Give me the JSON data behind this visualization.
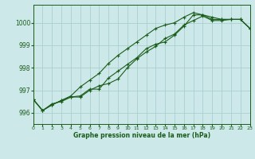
{
  "title": "Graphe pression niveau de la mer (hPa)",
  "bg_color": "#cce8e8",
  "grid_color": "#aad0d0",
  "line_color": "#1a5c1a",
  "xlim": [
    0,
    23
  ],
  "ylim": [
    995.5,
    1000.8
  ],
  "yticks": [
    996,
    997,
    998,
    999,
    1000
  ],
  "xticks": [
    0,
    1,
    2,
    3,
    4,
    5,
    6,
    7,
    8,
    9,
    10,
    11,
    12,
    13,
    14,
    15,
    16,
    17,
    18,
    19,
    20,
    21,
    22,
    23
  ],
  "series1": [
    996.6,
    996.1,
    996.4,
    996.5,
    996.7,
    996.7,
    997.0,
    997.2,
    997.3,
    997.5,
    998.0,
    998.4,
    998.7,
    998.95,
    999.3,
    999.5,
    999.9,
    1000.1,
    1000.3,
    1000.1,
    1000.1,
    1000.15,
    1000.15,
    999.75
  ],
  "series2": [
    996.6,
    996.1,
    996.35,
    996.55,
    996.75,
    997.15,
    997.45,
    997.75,
    998.2,
    998.55,
    998.85,
    999.15,
    999.45,
    999.75,
    999.9,
    1000.0,
    1000.25,
    1000.45,
    1000.35,
    1000.25,
    1000.15,
    1000.15,
    1000.15,
    999.75
  ],
  "series3": [
    996.6,
    996.1,
    996.35,
    996.55,
    996.7,
    996.75,
    997.05,
    997.05,
    997.55,
    997.85,
    998.15,
    998.45,
    998.85,
    999.05,
    999.15,
    999.45,
    999.85,
    1000.35,
    1000.35,
    1000.15,
    1000.15,
    1000.15,
    1000.15,
    999.75
  ]
}
